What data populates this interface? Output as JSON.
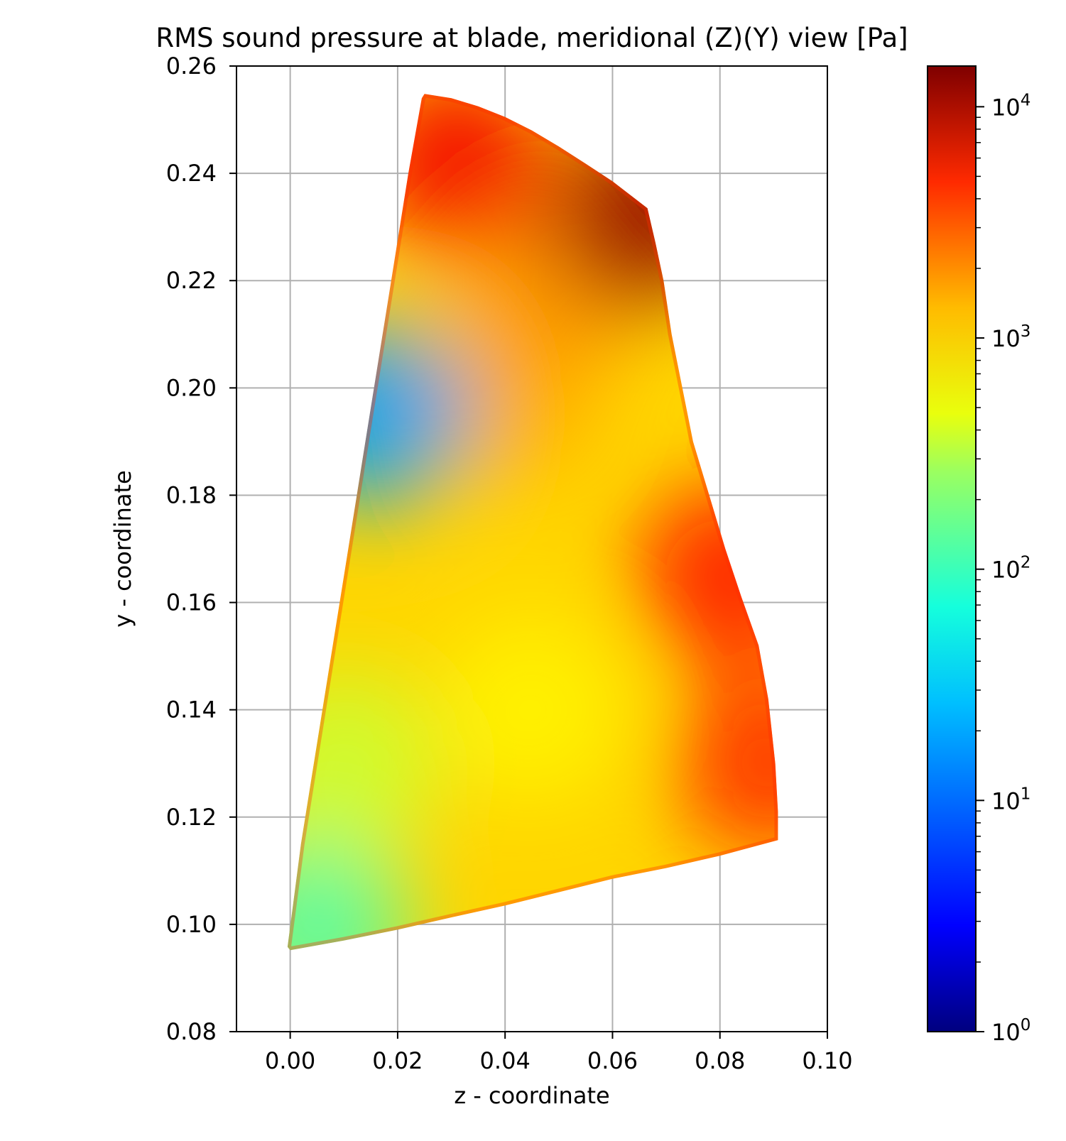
{
  "chart_data": {
    "type": "heatmap",
    "title": "RMS sound pressure at blade, meridional (Z)(Y) view [Pa]",
    "xlabel": "z - coordinate",
    "ylabel": "y - coordinate",
    "xlim": [
      -0.01,
      0.1
    ],
    "ylim": [
      0.08,
      0.26
    ],
    "grid": true,
    "x_ticks": [
      "0.00",
      "0.02",
      "0.04",
      "0.06",
      "0.08",
      "0.10"
    ],
    "y_ticks": [
      "0.08",
      "0.10",
      "0.12",
      "0.14",
      "0.16",
      "0.18",
      "0.20",
      "0.22",
      "0.24",
      "0.26"
    ],
    "x_tick_values": [
      0.0,
      0.02,
      0.04,
      0.06,
      0.08,
      0.1
    ],
    "y_tick_values": [
      0.08,
      0.1,
      0.12,
      0.14,
      0.16,
      0.18,
      0.2,
      0.22,
      0.24,
      0.26
    ],
    "colormap": "jet",
    "color_scale": "log",
    "colorbar": {
      "min": 1,
      "max": 15000,
      "tick_base": "10",
      "tick_exponents": [
        "0",
        "1",
        "2",
        "3",
        "4"
      ],
      "tick_values": [
        1,
        10,
        100,
        1000,
        10000
      ]
    },
    "blade_outline": [
      [
        0.025,
        0.2548
      ],
      [
        0.03,
        0.254
      ],
      [
        0.035,
        0.2525
      ],
      [
        0.04,
        0.2505
      ],
      [
        0.045,
        0.248
      ],
      [
        0.05,
        0.245
      ],
      [
        0.055,
        0.2418
      ],
      [
        0.06,
        0.2385
      ],
      [
        0.0665,
        0.2335
      ],
      [
        0.068,
        0.227
      ],
      [
        0.0695,
        0.22
      ],
      [
        0.071,
        0.21
      ],
      [
        0.073,
        0.2
      ],
      [
        0.075,
        0.19
      ],
      [
        0.078,
        0.18
      ],
      [
        0.081,
        0.17
      ],
      [
        0.084,
        0.161
      ],
      [
        0.0872,
        0.152
      ],
      [
        0.089,
        0.142
      ],
      [
        0.0903,
        0.13
      ],
      [
        0.0908,
        0.121
      ],
      [
        0.0908,
        0.1157
      ],
      [
        0.08,
        0.1128
      ],
      [
        0.07,
        0.1105
      ],
      [
        0.06,
        0.1085
      ],
      [
        0.05,
        0.106
      ],
      [
        0.04,
        0.1035
      ],
      [
        0.03,
        0.1013
      ],
      [
        0.02,
        0.099
      ],
      [
        0.01,
        0.097
      ],
      [
        0.0,
        0.0952
      ],
      [
        -0.0005,
        0.0958
      ],
      [
        0.002,
        0.115
      ],
      [
        0.006,
        0.14
      ],
      [
        0.01,
        0.165
      ],
      [
        0.014,
        0.19
      ],
      [
        0.018,
        0.215
      ],
      [
        0.022,
        0.24
      ],
      [
        0.0245,
        0.254
      ],
      [
        0.025,
        0.2548
      ]
    ],
    "field_samples": [
      {
        "z": 0.005,
        "y": 0.1,
        "value": 80
      },
      {
        "z": 0.01,
        "y": 0.13,
        "value": 250
      },
      {
        "z": 0.045,
        "y": 0.14,
        "value": 450
      },
      {
        "z": 0.04,
        "y": 0.2,
        "value": 900
      },
      {
        "z": 0.05,
        "y": 0.22,
        "value": 1100
      },
      {
        "z": 0.066,
        "y": 0.232,
        "value": 12000
      },
      {
        "z": 0.082,
        "y": 0.165,
        "value": 3500
      },
      {
        "z": 0.089,
        "y": 0.13,
        "value": 3000
      },
      {
        "z": 0.016,
        "y": 0.195,
        "value": 15
      },
      {
        "z": 0.031,
        "y": 0.242,
        "value": 5000
      }
    ]
  }
}
